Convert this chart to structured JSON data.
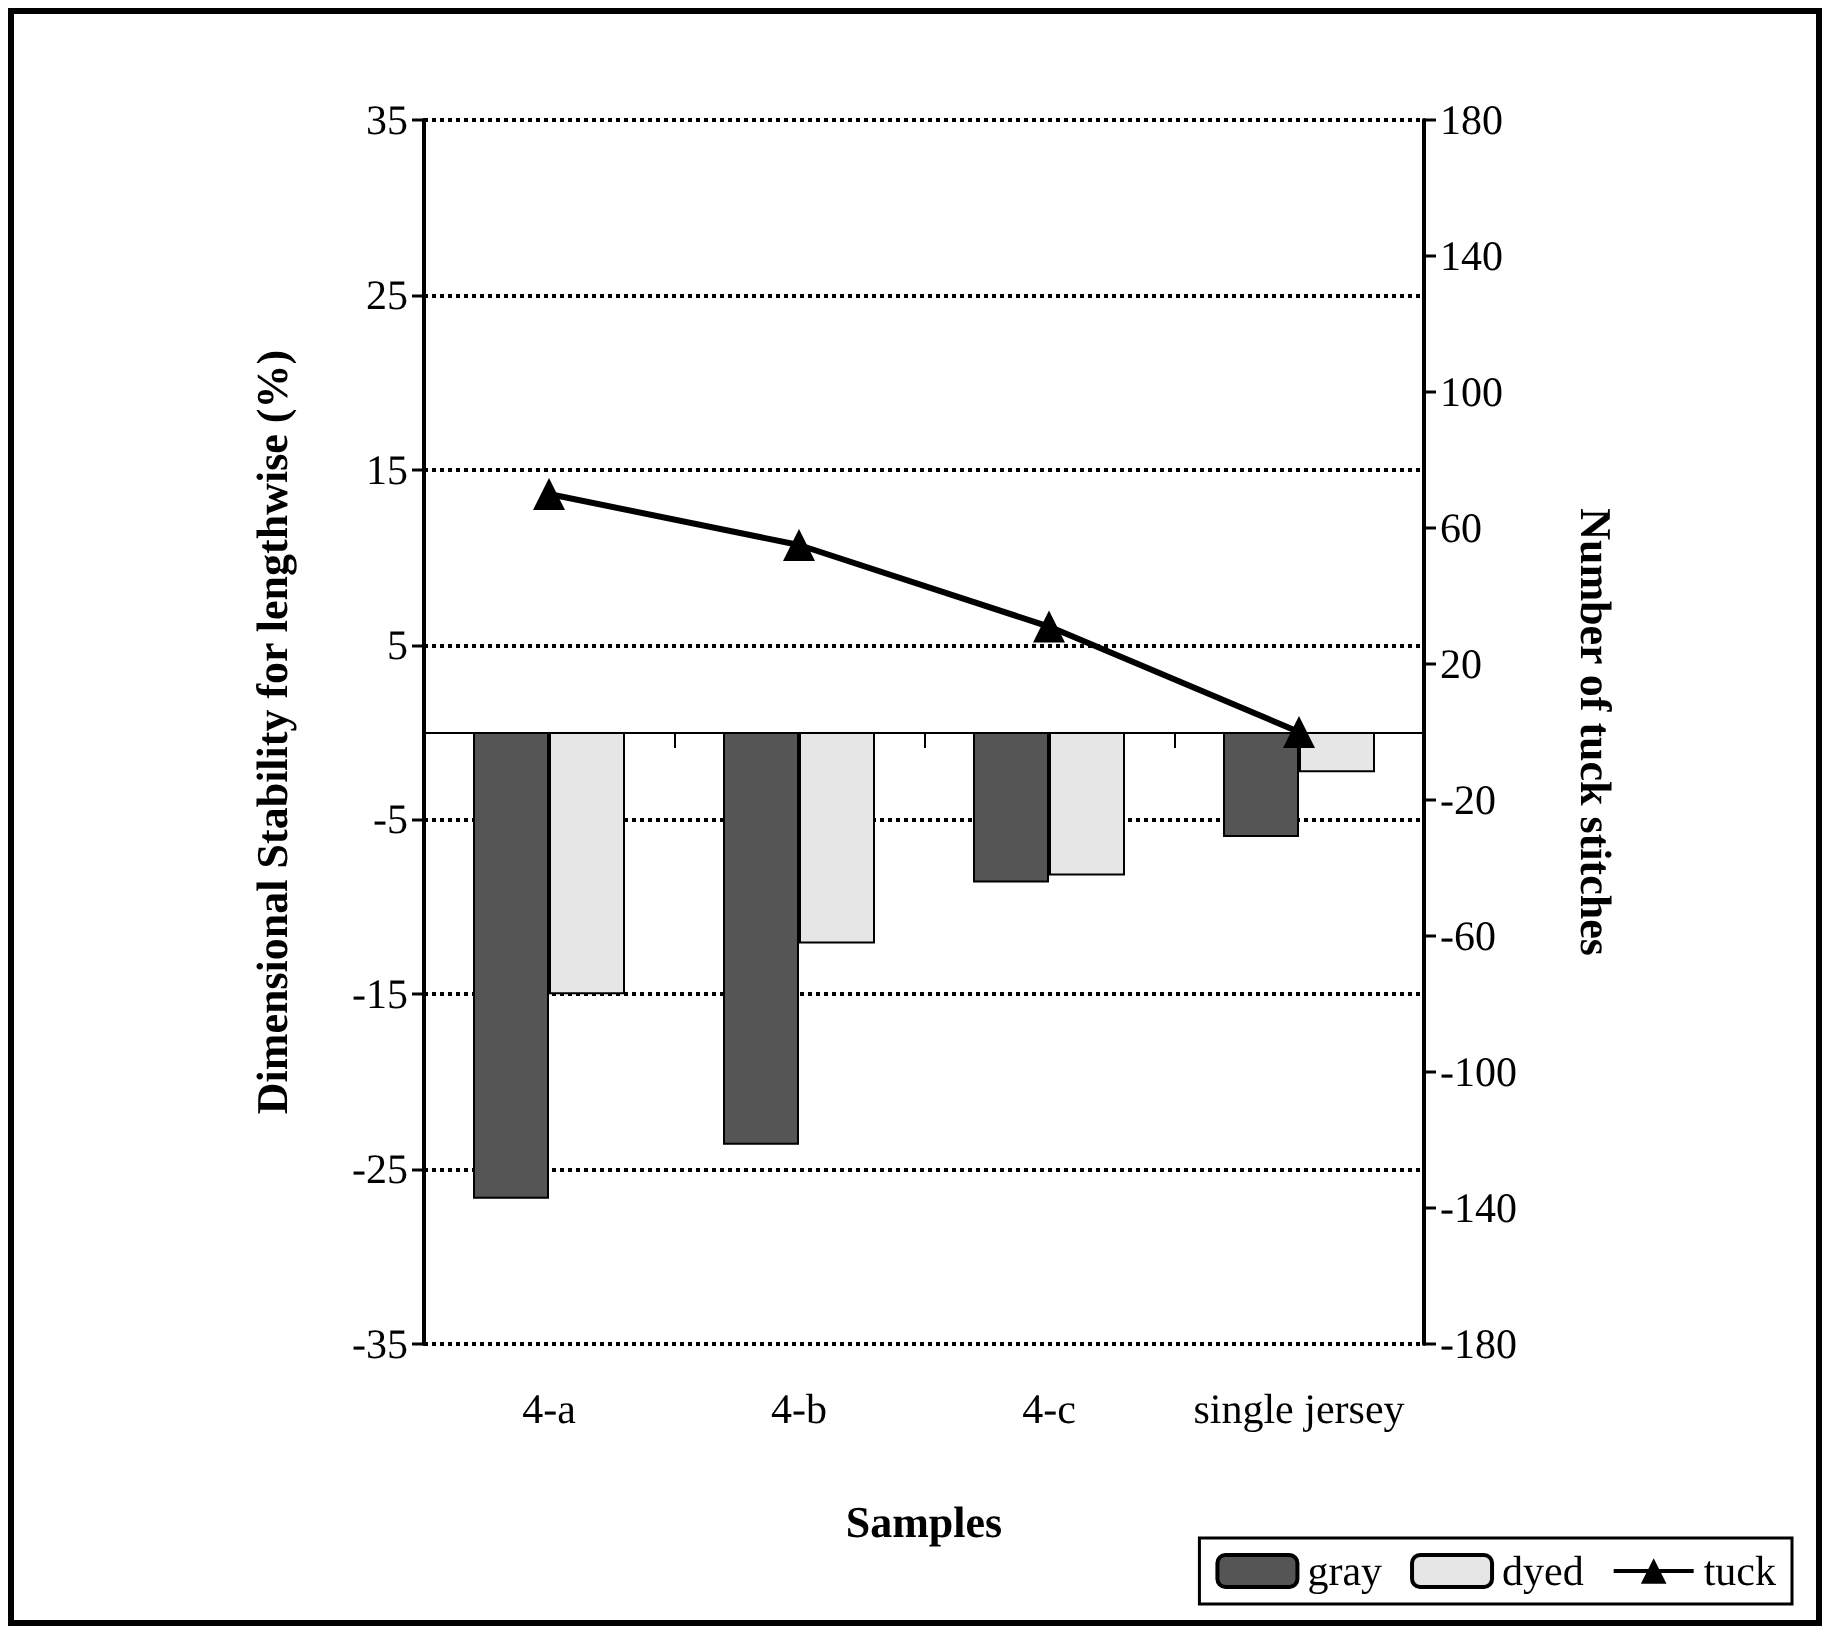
{
  "chart_data": {
    "type": "bar",
    "categories": [
      "4-a",
      "4-b",
      "4-c",
      "single jersey"
    ],
    "xlabel": "Samples",
    "ylabel": "Dimensional Stability for lengthwise (%)",
    "y2label": "Number of tuck stitches",
    "series": [
      {
        "name": "gray",
        "color": "#555555",
        "values": [
          -26.7,
          -23.6,
          -8.6,
          -6.0
        ]
      },
      {
        "name": "dyed",
        "color": "#e6e6e6",
        "values": [
          -15.0,
          -12.1,
          -8.2,
          -2.3
        ]
      },
      {
        "name": "tuck",
        "type": "line",
        "axis": "y2",
        "color": "#000000",
        "marker": "triangle",
        "line_style": "solid",
        "values": [
          70,
          55,
          31,
          0
        ]
      }
    ],
    "ylim": [
      -35,
      35
    ],
    "yticks": [
      -35,
      -25,
      -15,
      -5,
      5,
      15,
      25,
      35
    ],
    "y2lim": [
      -180,
      180
    ],
    "y2ticks": [
      -180,
      -140,
      -100,
      -60,
      -20,
      20,
      60,
      100,
      140,
      180
    ],
    "grid": "y",
    "legend": "bottom right"
  }
}
